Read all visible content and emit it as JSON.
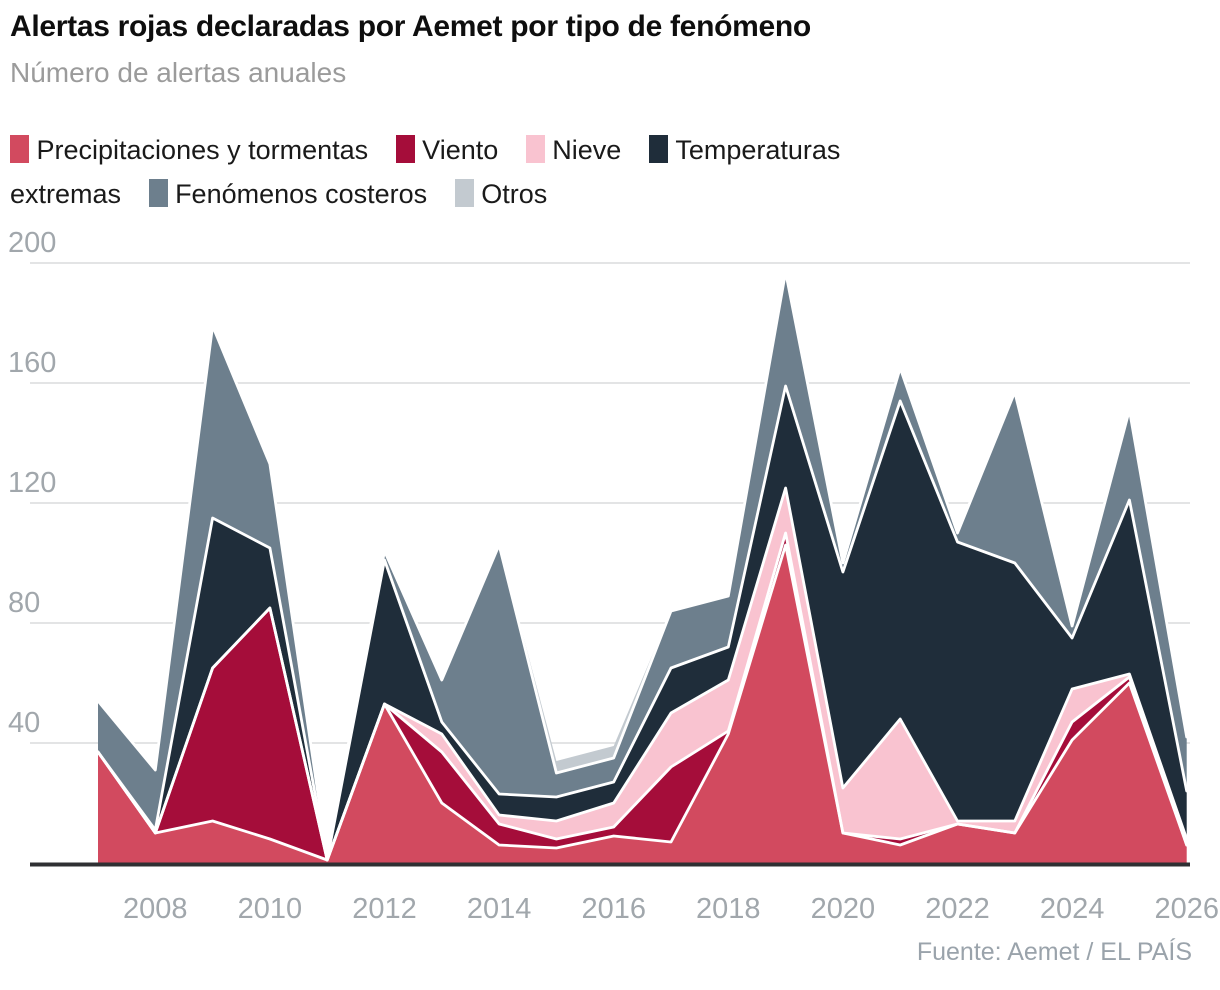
{
  "header": {
    "title": "Alertas rojas declaradas por Aemet por tipo de fenómeno",
    "subtitle": "Número de alertas anuales"
  },
  "legend": {
    "items": [
      {
        "label": "Precipitaciones y tormentas",
        "color": "#d24a5f"
      },
      {
        "label": "Viento",
        "color": "#a50d3a"
      },
      {
        "label": "Nieve",
        "color": "#f9c3d0"
      },
      {
        "label": "Temperaturas extremas",
        "color": "#1f2d3a"
      },
      {
        "label": "Fenómenos costeros",
        "color": "#6d7f8d"
      },
      {
        "label": "Otros",
        "color": "#c3cad0"
      }
    ]
  },
  "chart_data": {
    "type": "area",
    "stacked": true,
    "title": "Alertas rojas declaradas por Aemet por tipo de fenómeno",
    "subtitle": "Número de alertas anuales",
    "x": [
      2007,
      2008,
      2009,
      2010,
      2011,
      2012,
      2013,
      2014,
      2015,
      2016,
      2017,
      2018,
      2019,
      2020,
      2021,
      2022,
      2023,
      2024,
      2025,
      2026
    ],
    "series": [
      {
        "name": "Precipitaciones y tormentas",
        "color": "#d24a5f",
        "values": [
          37,
          10,
          14,
          8,
          1,
          53,
          20,
          6,
          5,
          9,
          7,
          43,
          106,
          10,
          6,
          13,
          10,
          41,
          60,
          6
        ]
      },
      {
        "name": "Viento",
        "color": "#a50d3a",
        "values": [
          0,
          0,
          51,
          77,
          0,
          0,
          17,
          7,
          3,
          3,
          25,
          1,
          4,
          0,
          2,
          0,
          0,
          6,
          2,
          0
        ]
      },
      {
        "name": "Nieve",
        "color": "#f9c3d0",
        "values": [
          0,
          0,
          0,
          0,
          0,
          0,
          6,
          3,
          6,
          8,
          18,
          17,
          15,
          15,
          40,
          1,
          4,
          11,
          1,
          2
        ]
      },
      {
        "name": "Temperaturas extremas",
        "color": "#1f2d3a",
        "values": [
          0,
          1,
          50,
          20,
          0,
          48,
          4,
          7,
          8,
          7,
          15,
          11,
          34,
          72,
          106,
          93,
          86,
          17,
          58,
          16
        ]
      },
      {
        "name": "Fenómenos costeros",
        "color": "#6d7f8d",
        "values": [
          17,
          20,
          64,
          28,
          1,
          3,
          14,
          83,
          8,
          8,
          19,
          17,
          38,
          3,
          11,
          3,
          57,
          4,
          30,
          18
        ]
      },
      {
        "name": "Otros",
        "color": "#c3cad0",
        "values": [
          0,
          0,
          0,
          0,
          0,
          0,
          0,
          0,
          4,
          4,
          0,
          0,
          0,
          0,
          0,
          0,
          0,
          0,
          0,
          0
        ]
      }
    ],
    "ylim": [
      0,
      200
    ],
    "yticks": [
      40,
      80,
      120,
      160,
      200
    ],
    "xticks": [
      2008,
      2010,
      2012,
      2014,
      2016,
      2018,
      2020,
      2022,
      2024,
      2026
    ],
    "grid": "horizontal",
    "legend_position": "top",
    "colors": {
      "gridline": "#e3e4e5",
      "baseline": "#2f3033",
      "axis_text": "#a1a7ac",
      "band_border": "#ffffff"
    }
  },
  "footer": {
    "source": "Fuente: Aemet / EL PAÍS"
  }
}
